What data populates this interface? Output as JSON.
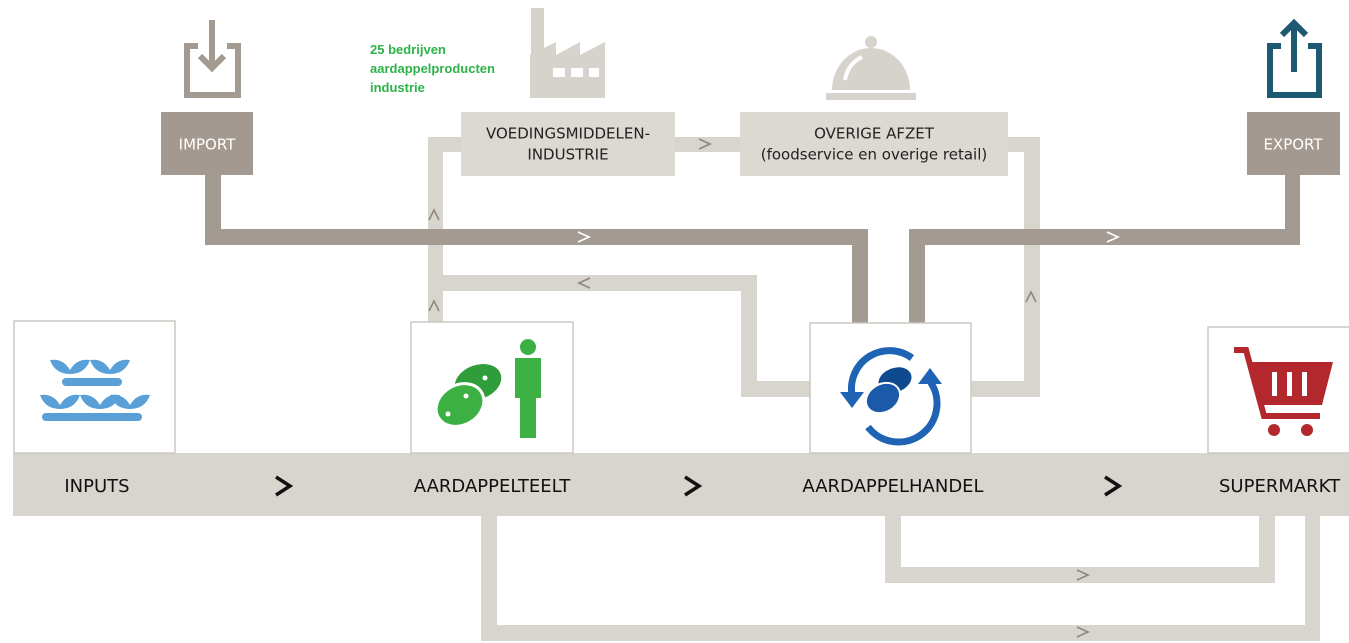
{
  "note": [
    "25 bedrijven",
    "aardappelproducten",
    "industrie"
  ],
  "import": "IMPORT",
  "export": "EXPORT",
  "industry": [
    "VOEDINGSMIDDELEN-",
    "INDUSTRIE"
  ],
  "other_sales": [
    "OVERIGE AFZET",
    "(foodservice en overige retail)"
  ],
  "stages": [
    "INPUTS",
    "AARDAPPELTEELT",
    "AARDAPPELHANDEL",
    "SUPERMARKT"
  ]
}
